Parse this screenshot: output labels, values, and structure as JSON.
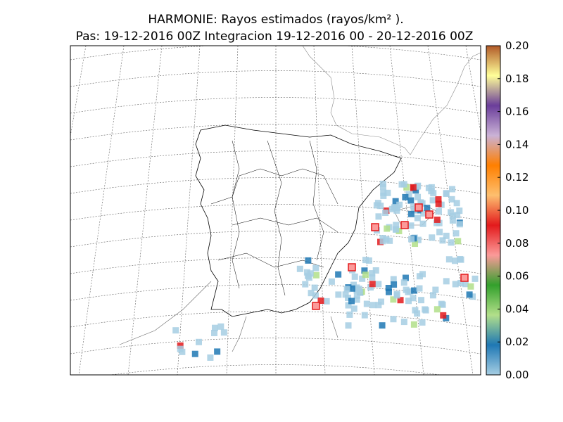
{
  "chart_data": {
    "type": "map",
    "title": "HARMONIE: Rayos estimados  (rayos/km² ).",
    "subtitle": "Pas: 19-12-2016 00Z Integracion 19-12-2016 00 - 20-12-2016 00Z",
    "colorbar_lim": [
      0,
      0.2
    ],
    "colorbar_ticks": [
      {
        "value": 0,
        "label": "0.00"
      },
      {
        "value": 0.02,
        "label": "0.02"
      },
      {
        "value": 0.04,
        "label": "0.04"
      },
      {
        "value": 0.06,
        "label": "0.06"
      },
      {
        "value": 0.08,
        "label": "0.08"
      },
      {
        "value": 0.1,
        "label": "0.10"
      },
      {
        "value": 0.12,
        "label": "0.12"
      },
      {
        "value": 0.14,
        "label": "0.14"
      },
      {
        "value": 0.16,
        "label": "0.16"
      },
      {
        "value": 0.18,
        "label": "0.18"
      },
      {
        "value": 0.2,
        "label": "0.20"
      }
    ],
    "colormap": [
      "#a6cee3",
      "#1f78b4",
      "#b2df8a",
      "#33a02c",
      "#fb9a99",
      "#e31a1c",
      "#fdbf6f",
      "#ff7f00",
      "#cab2d6",
      "#6a3d9a",
      "#ffff99",
      "#b15928"
    ]
  }
}
